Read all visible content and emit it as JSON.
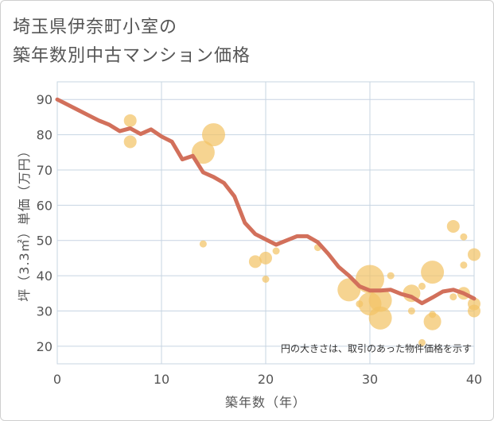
{
  "title_line1": "埼玉県伊奈町小室の",
  "title_line2": "築年数別中古マンション価格",
  "chart_data": {
    "type": "scatter",
    "xlabel": "築年数（年）",
    "ylabel": "坪（3.3㎡）単価（万円）",
    "xlim": [
      0,
      40
    ],
    "ylim": [
      15,
      95
    ],
    "xticks": [
      0,
      10,
      20,
      30,
      40
    ],
    "yticks": [
      20,
      30,
      40,
      50,
      60,
      70,
      80,
      90
    ],
    "grid": true,
    "note": "円の大きさは、取引のあった物件価格を示す",
    "colors": {
      "bubble": "#f3c367",
      "line": "#d2705b",
      "grid": "#c7d4e2"
    },
    "series": [
      {
        "kind": "bubbles",
        "points": [
          {
            "x": 7,
            "y": 84,
            "size": 2
          },
          {
            "x": 7,
            "y": 78,
            "size": 2
          },
          {
            "x": 14,
            "y": 75,
            "size": 4
          },
          {
            "x": 15,
            "y": 80,
            "size": 4
          },
          {
            "x": 14,
            "y": 49,
            "size": 1
          },
          {
            "x": 19,
            "y": 44,
            "size": 2
          },
          {
            "x": 20,
            "y": 45,
            "size": 2
          },
          {
            "x": 20,
            "y": 39,
            "size": 1
          },
          {
            "x": 21,
            "y": 47,
            "size": 1
          },
          {
            "x": 25,
            "y": 48,
            "size": 1
          },
          {
            "x": 28,
            "y": 36,
            "size": 4
          },
          {
            "x": 29,
            "y": 32,
            "size": 1
          },
          {
            "x": 30,
            "y": 39,
            "size": 5
          },
          {
            "x": 30,
            "y": 32,
            "size": 4
          },
          {
            "x": 31,
            "y": 33,
            "size": 4
          },
          {
            "x": 31,
            "y": 28,
            "size": 4
          },
          {
            "x": 32,
            "y": 40,
            "size": 1
          },
          {
            "x": 34,
            "y": 35,
            "size": 3
          },
          {
            "x": 34,
            "y": 30,
            "size": 1
          },
          {
            "x": 35,
            "y": 37,
            "size": 1
          },
          {
            "x": 35,
            "y": 21,
            "size": 1
          },
          {
            "x": 36,
            "y": 41,
            "size": 4
          },
          {
            "x": 36,
            "y": 27,
            "size": 3
          },
          {
            "x": 36,
            "y": 29,
            "size": 1
          },
          {
            "x": 38,
            "y": 54,
            "size": 2
          },
          {
            "x": 38,
            "y": 34,
            "size": 1
          },
          {
            "x": 39,
            "y": 51,
            "size": 1
          },
          {
            "x": 39,
            "y": 43,
            "size": 1
          },
          {
            "x": 39,
            "y": 35,
            "size": 2
          },
          {
            "x": 40,
            "y": 46,
            "size": 2
          },
          {
            "x": 40,
            "y": 32,
            "size": 2
          },
          {
            "x": 40,
            "y": 30,
            "size": 2
          }
        ]
      },
      {
        "kind": "line",
        "x": [
          0,
          1,
          2,
          3,
          4,
          5,
          6,
          7,
          8,
          9,
          10,
          11,
          12,
          13,
          14,
          15,
          16,
          17,
          18,
          19,
          20,
          21,
          22,
          23,
          24,
          25,
          26,
          27,
          28,
          29,
          30,
          31,
          32,
          33,
          34,
          35,
          36,
          37,
          38,
          39,
          40
        ],
        "y": [
          90,
          88.5,
          87,
          85.5,
          84,
          82.8,
          81,
          81.8,
          80.2,
          81.5,
          79.5,
          78,
          73,
          74,
          69.3,
          68,
          66.3,
          62.5,
          55,
          51.8,
          50.3,
          48.8,
          50,
          51.2,
          51.2,
          49.5,
          46.2,
          42.5,
          40,
          37,
          35.8,
          35.8,
          36,
          34.8,
          34,
          32.2,
          33.8,
          35.5,
          36,
          35,
          33.5
        ]
      }
    ]
  }
}
